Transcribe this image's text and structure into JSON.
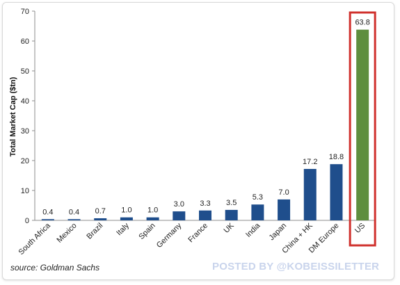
{
  "chart_data": {
    "type": "bar",
    "title": "",
    "xlabel": "",
    "ylabel": "Total Market Cap ($tn)",
    "ylim": [
      0,
      70
    ],
    "yticks": [
      0,
      10,
      20,
      30,
      40,
      50,
      60,
      70
    ],
    "grid": false,
    "categories": [
      "South Africa",
      "Mexico",
      "Brazil",
      "Italy",
      "Spain",
      "Germany",
      "France",
      "UK",
      "India",
      "Japan",
      "China + HK",
      "DM Europe",
      "US"
    ],
    "values": [
      0.4,
      0.4,
      0.7,
      1.0,
      1.0,
      3.0,
      3.3,
      3.5,
      5.3,
      7.0,
      17.2,
      18.8,
      63.8
    ],
    "data_labels": [
      "0.4",
      "0.4",
      "0.7",
      "1.0",
      "1.0",
      "3.0",
      "3.3",
      "3.5",
      "5.3",
      "7.0",
      "17.2",
      "18.8",
      "63.8"
    ],
    "highlight_category": "US",
    "colors": {
      "bar": "#1f4e8c",
      "highlight_bar": "#5e8e3e",
      "highlight_box": "#d0312d",
      "axis": "#8c8c8c"
    }
  },
  "source_text": "source: Goldman Sachs",
  "watermark_text": "POSTED BY @KOBEISSILETTER"
}
